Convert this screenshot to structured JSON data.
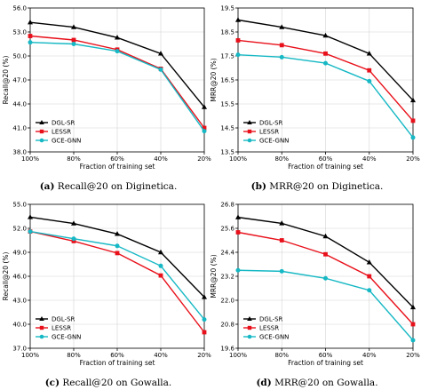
{
  "chart_data": [
    {
      "type": "line",
      "panel": "a",
      "caption_label": "(a)",
      "caption_text": "Recall@20 on Diginetica.",
      "xlabel": "Fraction of training set",
      "ylabel": "Recall@20 (%)",
      "categories": [
        "100%",
        "80%",
        "60%",
        "40%",
        "20%"
      ],
      "ylim": [
        38.0,
        56.0
      ],
      "yticks": [
        "38.0",
        "41.0",
        "44.0",
        "47.0",
        "50.0",
        "53.0",
        "56.0"
      ],
      "legend_position": "lower-left",
      "grid": true,
      "series": [
        {
          "name": "DGL-SR",
          "values": [
            54.2,
            53.6,
            52.3,
            50.3,
            43.6
          ]
        },
        {
          "name": "LESSR",
          "values": [
            52.5,
            52.0,
            50.8,
            48.4,
            41.0
          ]
        },
        {
          "name": "GCE-GNN",
          "values": [
            51.7,
            51.5,
            50.6,
            48.3,
            40.6
          ]
        }
      ]
    },
    {
      "type": "line",
      "panel": "b",
      "caption_label": "(b)",
      "caption_text": "MRR@20 on Diginetica.",
      "xlabel": "Fraction of training set",
      "ylabel": "MRR@20 (%)",
      "categories": [
        "100%",
        "80%",
        "60%",
        "40%",
        "20%"
      ],
      "ylim": [
        13.5,
        19.5
      ],
      "yticks": [
        "13.5",
        "14.5",
        "15.5",
        "16.5",
        "17.5",
        "18.5",
        "19.5"
      ],
      "legend_position": "lower-left",
      "grid": true,
      "series": [
        {
          "name": "DGL-SR",
          "values": [
            19.0,
            18.7,
            18.35,
            17.6,
            15.65
          ]
        },
        {
          "name": "LESSR",
          "values": [
            18.15,
            17.95,
            17.6,
            16.9,
            14.8
          ]
        },
        {
          "name": "GCE-GNN",
          "values": [
            17.55,
            17.45,
            17.2,
            16.45,
            14.1
          ]
        }
      ]
    },
    {
      "type": "line",
      "panel": "c",
      "caption_label": "(c)",
      "caption_text": "Recall@20 on Gowalla.",
      "xlabel": "Fraction of training set",
      "ylabel": "Recall@20 (%)",
      "categories": [
        "100%",
        "80%",
        "60%",
        "40%",
        "20%"
      ],
      "ylim": [
        37.0,
        55.0
      ],
      "yticks": [
        "37.0",
        "40.0",
        "43.0",
        "46.0",
        "49.0",
        "52.0",
        "55.0"
      ],
      "legend_position": "lower-left",
      "grid": true,
      "series": [
        {
          "name": "DGL-SR",
          "values": [
            53.4,
            52.6,
            51.3,
            49.0,
            43.4
          ]
        },
        {
          "name": "LESSR",
          "values": [
            51.6,
            50.4,
            48.9,
            46.1,
            39.0
          ]
        },
        {
          "name": "GCE-GNN",
          "values": [
            51.6,
            50.7,
            49.8,
            47.3,
            40.6
          ]
        }
      ]
    },
    {
      "type": "line",
      "panel": "d",
      "caption_label": "(d)",
      "caption_text": "MRR@20 on Gowalla.",
      "xlabel": "Fraction of training set",
      "ylabel": "MRR@20 (%)",
      "categories": [
        "100%",
        "80%",
        "60%",
        "40%",
        "20%"
      ],
      "ylim": [
        19.6,
        26.8
      ],
      "yticks": [
        "19.6",
        "20.8",
        "22.0",
        "23.2",
        "24.4",
        "25.6",
        "26.8"
      ],
      "legend_position": "lower-left",
      "grid": true,
      "series": [
        {
          "name": "DGL-SR",
          "values": [
            26.15,
            25.85,
            25.2,
            23.9,
            21.65
          ]
        },
        {
          "name": "LESSR",
          "values": [
            25.4,
            25.0,
            24.3,
            23.2,
            20.8
          ]
        },
        {
          "name": "GCE-GNN",
          "values": [
            23.5,
            23.45,
            23.1,
            22.5,
            20.0
          ]
        }
      ]
    }
  ],
  "series_colors": [
    "#000000",
    "#e8101a",
    "#15b8c4"
  ],
  "grid_color": "#d4d4d4"
}
